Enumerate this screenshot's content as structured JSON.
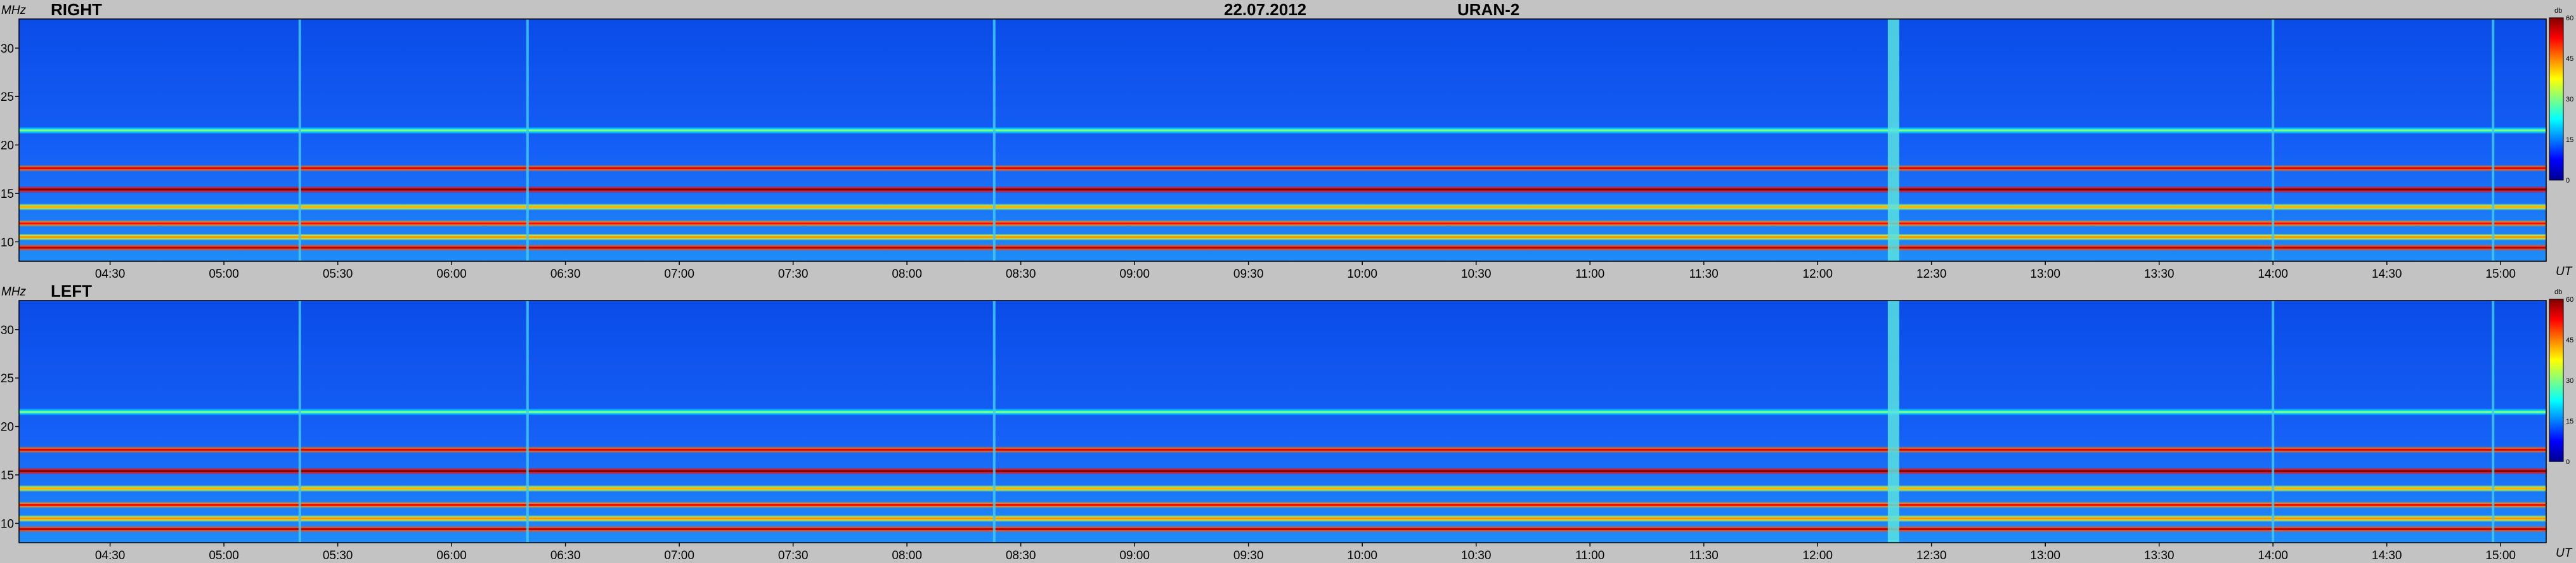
{
  "header": {
    "date": "22.07.2012",
    "instrument": "URAN-2"
  },
  "chart_data": [
    {
      "type": "heatmap",
      "title": "RIGHT",
      "xlabel": "UT",
      "ylabel": "MHz",
      "x_range": [
        "04:06",
        "15:12"
      ],
      "x_ticks": [
        "04:30",
        "05:00",
        "05:30",
        "06:00",
        "06:30",
        "07:00",
        "07:30",
        "08:00",
        "08:30",
        "09:00",
        "09:30",
        "10:00",
        "10:30",
        "11:00",
        "11:30",
        "12:00",
        "12:30",
        "13:00",
        "13:30",
        "14:00",
        "14:30",
        "15:00"
      ],
      "ylim": [
        8,
        33
      ],
      "y_ticks": [
        10,
        15,
        20,
        25,
        30
      ],
      "colorbar": {
        "unit": "db",
        "range": [
          0,
          60
        ],
        "ticks": [
          0,
          15,
          30,
          45,
          60
        ]
      },
      "interference_bands_mhz": [
        {
          "freq": 9.4,
          "level": 48
        },
        {
          "freq": 10.5,
          "level": 36
        },
        {
          "freq": 11.9,
          "level": 44
        },
        {
          "freq": 13.6,
          "level": 34
        },
        {
          "freq": 15.4,
          "level": 52
        },
        {
          "freq": 17.6,
          "level": 46
        },
        {
          "freq": 21.5,
          "level": 22
        }
      ],
      "burst_times": [
        "05:20",
        "06:20",
        "08:23",
        "12:20",
        "14:00",
        "14:58"
      ]
    },
    {
      "type": "heatmap",
      "title": "LEFT",
      "xlabel": "UT",
      "ylabel": "MHz",
      "x_range": [
        "04:06",
        "15:12"
      ],
      "x_ticks": [
        "04:30",
        "05:00",
        "05:30",
        "06:00",
        "06:30",
        "07:00",
        "07:30",
        "08:00",
        "08:30",
        "09:00",
        "09:30",
        "10:00",
        "10:30",
        "11:00",
        "11:30",
        "12:00",
        "12:30",
        "13:00",
        "13:30",
        "14:00",
        "14:30",
        "15:00"
      ],
      "ylim": [
        8,
        33
      ],
      "y_ticks": [
        10,
        15,
        20,
        25,
        30
      ],
      "colorbar": {
        "unit": "db",
        "range": [
          0,
          60
        ],
        "ticks": [
          0,
          15,
          30,
          45,
          60
        ]
      },
      "interference_bands_mhz": [
        {
          "freq": 9.4,
          "level": 48
        },
        {
          "freq": 10.5,
          "level": 36
        },
        {
          "freq": 11.9,
          "level": 44
        },
        {
          "freq": 13.6,
          "level": 34
        },
        {
          "freq": 15.4,
          "level": 52
        },
        {
          "freq": 17.6,
          "level": 46
        },
        {
          "freq": 21.5,
          "level": 22
        }
      ],
      "burst_times": [
        "05:20",
        "06:20",
        "08:23",
        "12:20",
        "14:00",
        "14:58"
      ]
    }
  ]
}
